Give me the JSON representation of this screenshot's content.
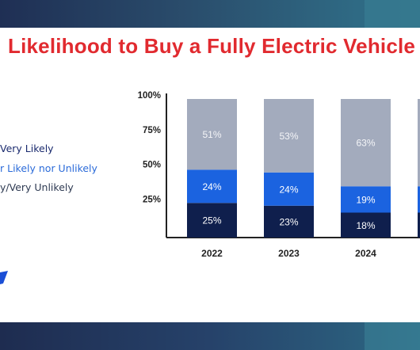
{
  "title": "Likelihood to Buy a Fully Electric Vehicle",
  "legend": [
    {
      "label": "Very Likely",
      "color": "#1a2a6e"
    },
    {
      "label": "r Likely nor Unlikely",
      "color": "#2b6bd9"
    },
    {
      "label": "y/Very Unlikely",
      "color": "#2e3a52"
    }
  ],
  "icons": {
    "brand": "brand-logo-fragment"
  },
  "chart_data": {
    "type": "bar",
    "stacked": true,
    "categories": [
      "2022",
      "2023",
      "2024"
    ],
    "series": [
      {
        "values": [
          25,
          23,
          18
        ],
        "labels": [
          "25%",
          "23%",
          "18%"
        ],
        "color": "#0f1f4d"
      },
      {
        "values": [
          24,
          24,
          19
        ],
        "labels": [
          "24%",
          "24%",
          "19%"
        ],
        "color": "#1b63e0"
      },
      {
        "values": [
          51,
          53,
          63
        ],
        "labels": [
          "51%",
          "53%",
          "63%"
        ],
        "color": "#a3abbd"
      }
    ],
    "yticks": [
      "100%",
      "75%",
      "50%",
      "25%"
    ],
    "ylim": [
      0,
      100
    ],
    "grid": false
  }
}
